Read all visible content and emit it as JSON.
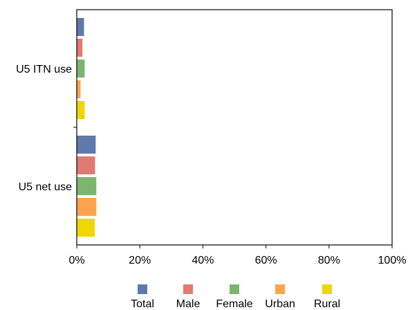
{
  "chart_data": {
    "type": "bar",
    "orientation": "horizontal",
    "categories": [
      "U5 ITN use",
      "U5 net use"
    ],
    "series": [
      {
        "name": "Total",
        "color": "#5f7aaa",
        "values": [
          2.3,
          6.0
        ]
      },
      {
        "name": "Male",
        "color": "#e17a72",
        "values": [
          1.8,
          5.8
        ]
      },
      {
        "name": "Female",
        "color": "#7cb56e",
        "values": [
          2.5,
          6.2
        ]
      },
      {
        "name": "Urban",
        "color": "#fba44d",
        "values": [
          1.2,
          6.2
        ]
      },
      {
        "name": "Rural",
        "color": "#eed702",
        "values": [
          2.5,
          5.7
        ]
      }
    ],
    "xlim": [
      0,
      100
    ],
    "x_ticks": [
      0,
      20,
      40,
      60,
      80,
      100
    ],
    "x_tick_labels": [
      "0%",
      "20%",
      "40%",
      "60%",
      "80%",
      "100%"
    ],
    "grid": false,
    "legend_position": "bottom"
  }
}
